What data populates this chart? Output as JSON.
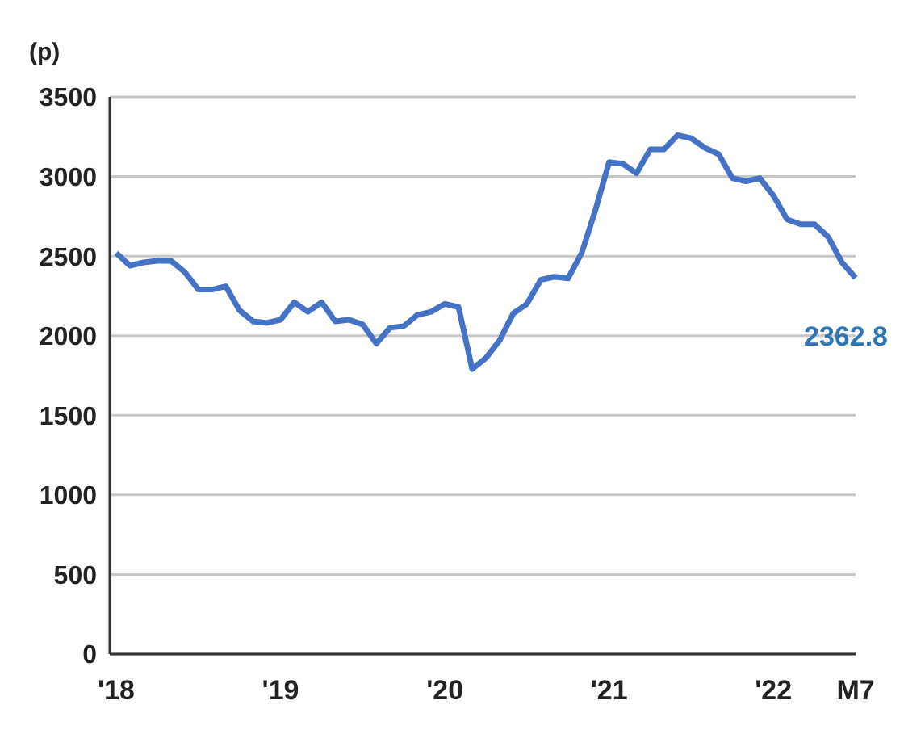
{
  "chart_data": {
    "type": "line",
    "ylabel": "(p)",
    "categories": [
      "'18",
      null,
      null,
      null,
      null,
      null,
      null,
      null,
      null,
      null,
      null,
      null,
      "'19",
      null,
      null,
      null,
      null,
      null,
      null,
      null,
      null,
      null,
      null,
      null,
      "'20",
      null,
      null,
      null,
      null,
      null,
      null,
      null,
      null,
      null,
      null,
      null,
      "'21",
      null,
      null,
      null,
      null,
      null,
      null,
      null,
      null,
      null,
      null,
      null,
      "'22",
      null,
      null,
      null,
      null,
      null,
      "M7"
    ],
    "series": [
      {
        "color": "#4472c4",
        "values": [
          2520,
          2440,
          2460,
          2470,
          2470,
          2400,
          2290,
          2290,
          2310,
          2160,
          2090,
          2080,
          2100,
          2210,
          2150,
          2210,
          2090,
          2100,
          2070,
          1950,
          2050,
          2060,
          2130,
          2150,
          2200,
          2180,
          1790,
          1860,
          1970,
          2140,
          2200,
          2350,
          2370,
          2360,
          2520,
          2790,
          3090,
          3080,
          3020,
          3170,
          3170,
          3260,
          3240,
          3180,
          3140,
          2990,
          2970,
          2990,
          2880,
          2730,
          2700,
          2700,
          2620,
          2460,
          2362.8
        ]
      }
    ],
    "ylim": [
      0,
      3500
    ],
    "yticks": [
      0,
      500,
      1000,
      1500,
      2000,
      2500,
      3000,
      3500
    ],
    "grid": "y",
    "legend": false,
    "marker": "none",
    "line_style": "solid",
    "annotations": [
      {
        "text": "2362.8",
        "x": "M7",
        "y": 2362.8
      }
    ]
  }
}
